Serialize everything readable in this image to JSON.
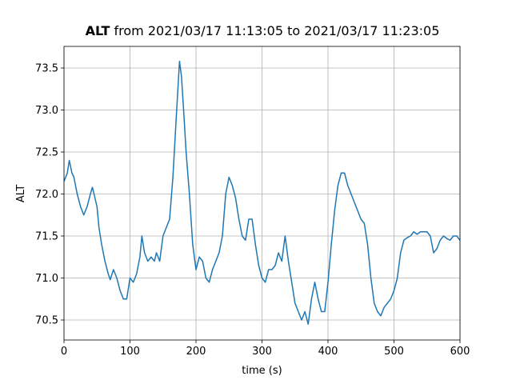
{
  "chart_data": {
    "type": "line",
    "title_variable": "ALT",
    "title": "from 2021/03/17 11:13:05 to 2021/03/17 11:23:05",
    "x_label": "time (s)",
    "y_label": "ALT",
    "grid": true,
    "xlim": [
      0,
      600
    ],
    "ylim": [
      70.262,
      73.757
    ],
    "xticks": [
      0,
      100,
      200,
      300,
      400,
      500,
      600
    ],
    "yticks": [
      70.5,
      {
        "value": 71,
        "label": "71.0"
      },
      71.5,
      {
        "value": 72,
        "label": "72.0"
      },
      72.5,
      {
        "value": 73,
        "label": "73.0"
      },
      73.5
    ],
    "x": [
      0,
      5,
      8,
      12,
      15,
      20,
      25,
      30,
      35,
      40,
      43,
      47,
      50,
      53,
      57,
      62,
      67,
      70,
      75,
      80,
      85,
      90,
      95,
      100,
      105,
      110,
      115,
      118,
      122,
      127,
      132,
      137,
      140,
      145,
      150,
      155,
      160,
      165,
      170,
      175,
      178,
      182,
      185,
      190,
      195,
      200,
      205,
      210,
      215,
      220,
      225,
      230,
      235,
      240,
      245,
      250,
      255,
      260,
      265,
      270,
      275,
      280,
      285,
      290,
      295,
      300,
      305,
      310,
      315,
      320,
      325,
      330,
      335,
      340,
      345,
      350,
      355,
      360,
      365,
      370,
      375,
      380,
      385,
      390,
      395,
      400,
      405,
      410,
      415,
      420,
      425,
      430,
      435,
      440,
      445,
      450,
      455,
      460,
      465,
      470,
      475,
      480,
      485,
      490,
      495,
      500,
      505,
      510,
      515,
      520,
      525,
      530,
      535,
      540,
      545,
      550,
      555,
      560,
      565,
      570,
      575,
      580,
      585,
      590,
      595,
      600
    ],
    "series": [
      {
        "name": "ALT",
        "color": "#1f77b4",
        "values": [
          72.15,
          72.25,
          72.4,
          72.25,
          72.2,
          72.0,
          71.85,
          71.75,
          71.85,
          72.0,
          72.08,
          71.95,
          71.85,
          71.6,
          71.4,
          71.2,
          71.05,
          70.98,
          71.1,
          71.0,
          70.85,
          70.75,
          70.75,
          71.0,
          70.95,
          71.05,
          71.25,
          71.5,
          71.3,
          71.2,
          71.25,
          71.2,
          71.3,
          71.2,
          71.5,
          71.6,
          71.7,
          72.2,
          72.9,
          73.58,
          73.4,
          72.9,
          72.5,
          72.0,
          71.4,
          71.1,
          71.25,
          71.2,
          71.0,
          70.95,
          71.1,
          71.2,
          71.3,
          71.5,
          72.0,
          72.2,
          72.1,
          71.95,
          71.7,
          71.5,
          71.45,
          71.7,
          71.7,
          71.4,
          71.15,
          71.0,
          70.95,
          71.1,
          71.1,
          71.15,
          71.3,
          71.2,
          71.5,
          71.2,
          70.95,
          70.7,
          70.6,
          70.5,
          70.6,
          70.45,
          70.75,
          70.95,
          70.75,
          70.6,
          70.6,
          70.95,
          71.4,
          71.8,
          72.1,
          72.25,
          72.25,
          72.1,
          72.0,
          71.9,
          71.8,
          71.7,
          71.65,
          71.4,
          71.0,
          70.7,
          70.6,
          70.55,
          70.65,
          70.7,
          70.75,
          70.85,
          71.0,
          71.3,
          71.45,
          71.48,
          71.5,
          71.55,
          71.52,
          71.55,
          71.55,
          71.55,
          71.5,
          71.3,
          71.35,
          71.45,
          71.5,
          71.47,
          71.45,
          71.5,
          71.5,
          71.45
        ]
      }
    ]
  }
}
